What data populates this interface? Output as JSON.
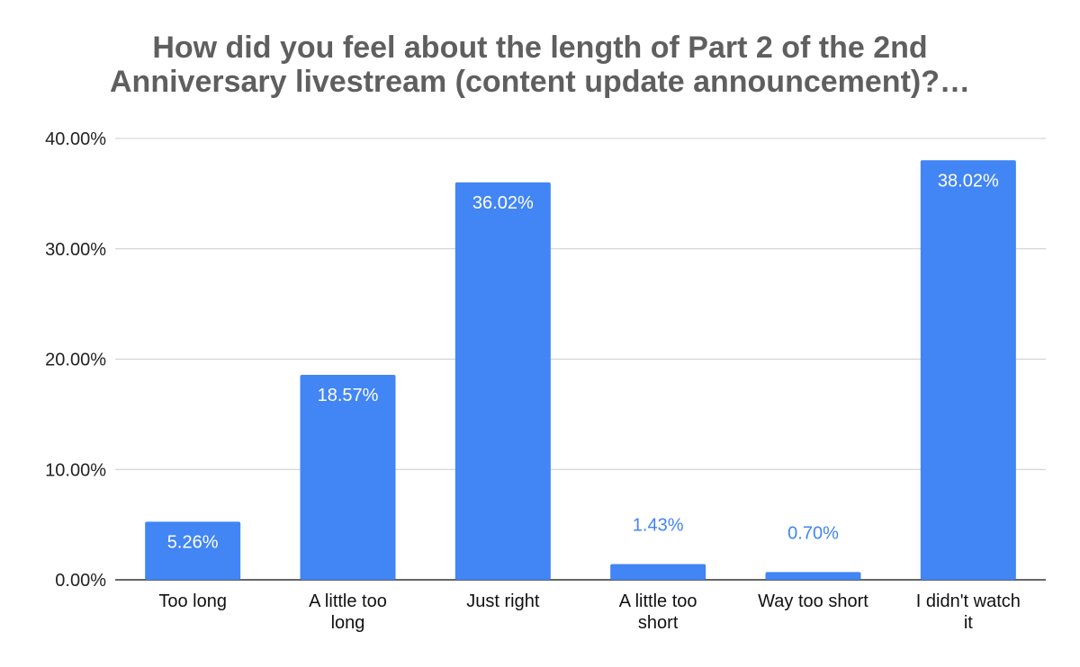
{
  "chart_data": {
    "type": "bar",
    "title_lines": [
      "How did you feel about the length of Part 2 of the 2nd",
      "Anniversary livestream (content update announcement)?…"
    ],
    "categories": [
      [
        "Too long"
      ],
      [
        "A little too",
        "long"
      ],
      [
        "Just right"
      ],
      [
        "A little too",
        "short"
      ],
      [
        "Way too short"
      ],
      [
        "I didn't watch",
        "it"
      ]
    ],
    "values": [
      5.26,
      18.57,
      36.02,
      1.43,
      0.7,
      38.02
    ],
    "value_labels": [
      "5.26%",
      "18.57%",
      "36.02%",
      "1.43%",
      "0.70%",
      "38.02%"
    ],
    "ylim": [
      0,
      40
    ],
    "yticks": [
      {
        "value": 0,
        "label": "0.00%"
      },
      {
        "value": 10,
        "label": "10.00%"
      },
      {
        "value": 20,
        "label": "20.00%"
      },
      {
        "value": 30,
        "label": "30.00%"
      },
      {
        "value": 40,
        "label": "40.00%"
      }
    ],
    "bar_color": "#4285f4",
    "grid": true,
    "legend": "none"
  }
}
